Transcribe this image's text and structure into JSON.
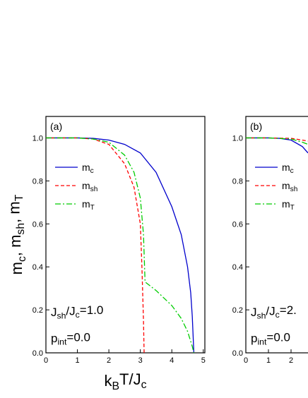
{
  "chart_data": [
    {
      "type": "line",
      "panel_label": "(a)",
      "xlabel": [
        "k",
        "B",
        "T/J",
        "c"
      ],
      "ylabel": [
        "m",
        "c",
        ", m",
        "sh",
        ", m",
        "T"
      ],
      "annotations": [
        [
          "J",
          "sh",
          "/J",
          "c",
          "=1.0"
        ],
        [
          "p",
          "int",
          "=0.0"
        ]
      ],
      "xlim": [
        0,
        5.05
      ],
      "ylim": [
        0,
        1.1
      ],
      "xticks": [
        0,
        1,
        2,
        3,
        4,
        5
      ],
      "yticks": [
        {
          "value": 0,
          "label": "0.0"
        },
        0.2,
        0.4,
        0.6,
        0.8,
        {
          "value": 1,
          "label": "1.0"
        }
      ],
      "series": [
        {
          "name": [
            "m",
            "c"
          ],
          "color": "#0000cc",
          "style": "solid",
          "x": [
            0,
            1,
            1.5,
            2,
            2.5,
            3,
            3.5,
            4,
            4.3,
            4.5,
            4.6,
            4.65,
            4.7
          ],
          "values": [
            1,
            1,
            0.998,
            0.99,
            0.97,
            0.93,
            0.84,
            0.68,
            0.55,
            0.4,
            0.28,
            0.17,
            0
          ]
        },
        {
          "name": [
            "m",
            "sh"
          ],
          "color": "#ff0000",
          "style": "dashed",
          "x": [
            0,
            1,
            1.5,
            2,
            2.5,
            2.8,
            3,
            3.05,
            3.1,
            3.12
          ],
          "values": [
            1,
            1,
            0.995,
            0.97,
            0.88,
            0.77,
            0.6,
            0.4,
            0.15,
            0
          ]
        },
        {
          "name": [
            "m",
            "T"
          ],
          "color": "#00cc00",
          "style": "dashdot",
          "x": [
            0,
            1,
            1.5,
            2,
            2.5,
            2.8,
            3,
            3.1,
            3.15,
            3.5,
            4,
            4.3,
            4.5,
            4.65,
            4.7
          ],
          "values": [
            1,
            1,
            0.995,
            0.98,
            0.92,
            0.84,
            0.72,
            0.55,
            0.33,
            0.29,
            0.22,
            0.16,
            0.1,
            0.03,
            0
          ]
        }
      ]
    },
    {
      "type": "line",
      "panel_label": "(b)",
      "annotations": [
        [
          "J",
          "sh",
          "/J",
          "c",
          "=2."
        ],
        [
          "p",
          "int",
          "=0.0"
        ]
      ],
      "xlim": [
        0,
        7
      ],
      "ylim": [
        0,
        1.1
      ],
      "xticks": [
        0,
        1,
        2
      ],
      "yticks": [
        {
          "value": 0,
          "label": "0.0"
        },
        0.2,
        0.4,
        0.6,
        0.8,
        {
          "value": 1,
          "label": "1.0"
        }
      ],
      "series": [
        {
          "name": [
            "m",
            "c"
          ],
          "color": "#0000cc",
          "style": "solid",
          "x": [
            0,
            1,
            1.5,
            2,
            2.5,
            2.75
          ],
          "values": [
            1,
            1,
            0.998,
            0.99,
            0.96,
            0.93
          ]
        },
        {
          "name": [
            "m",
            "sh"
          ],
          "color": "#ff0000",
          "style": "dashed",
          "x": [
            0,
            1,
            2,
            2.5,
            2.75
          ],
          "values": [
            1,
            1,
            0.998,
            0.99,
            0.985
          ]
        },
        {
          "name": [
            "m",
            "T"
          ],
          "color": "#00cc00",
          "style": "dashdot",
          "x": [
            0,
            1,
            2,
            2.5,
            2.75
          ],
          "values": [
            1,
            1,
            0.995,
            0.98,
            0.97
          ]
        }
      ]
    }
  ]
}
